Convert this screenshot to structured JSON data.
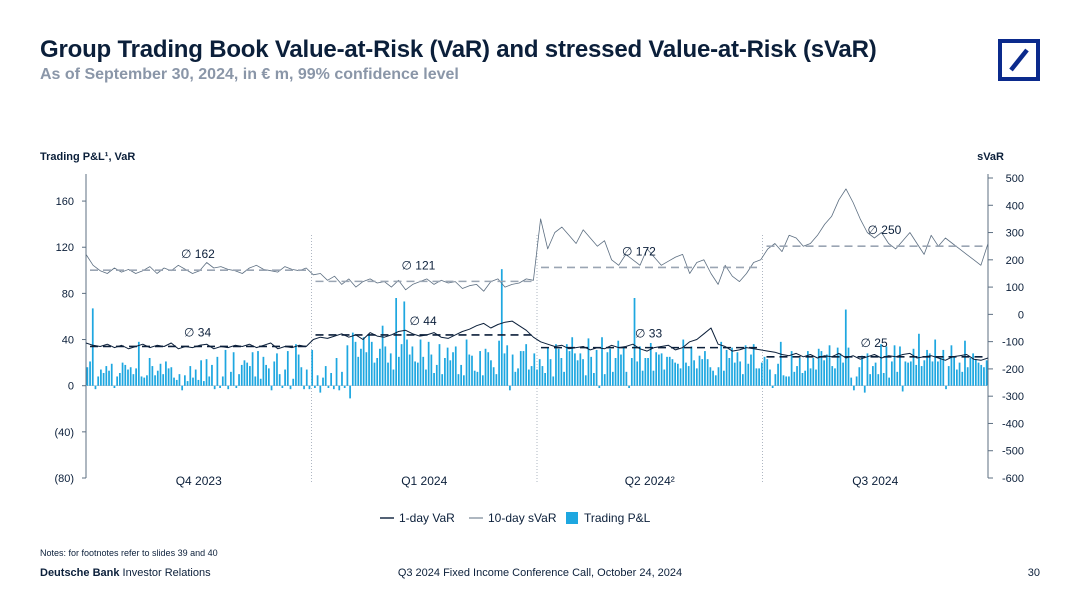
{
  "header": {
    "title": "Group Trading Book Value-at-Risk (VaR) and stressed Value-at-Risk (sVaR)",
    "subtitle": "As of September 30, 2024, in € m, 99% confidence level"
  },
  "brand": {
    "logo": "deutsche-bank-logo",
    "color": "#0b2a8c"
  },
  "chart_data": {
    "type": "line",
    "left_axis": {
      "label": "Trading P&L¹, VaR",
      "ylim": [
        -80,
        180
      ],
      "ticks": [
        -80,
        -40,
        0,
        40,
        80,
        120,
        160
      ],
      "tick_labels": [
        "(80)",
        "(40)",
        "0",
        "40",
        "80",
        "120",
        "160"
      ]
    },
    "right_axis": {
      "label": "sVaR",
      "ylim": [
        -600,
        500
      ],
      "ticks": [
        -600,
        -500,
        -400,
        -300,
        -200,
        -100,
        0,
        100,
        200,
        300,
        400,
        500
      ],
      "tick_labels": [
        "-600",
        "-500",
        "-400",
        "-300",
        "-200",
        "-100",
        "0",
        "100",
        "200",
        "300",
        "400",
        "500"
      ]
    },
    "quarters": [
      {
        "label": "Q4 2023",
        "avg_var": 34,
        "avg_svar": 162,
        "avg_var_label": "∅ 34",
        "avg_svar_label": "∅ 162"
      },
      {
        "label": "Q1 2024",
        "avg_var": 44,
        "avg_svar": 121,
        "avg_var_label": "∅ 44",
        "avg_svar_label": "∅ 121"
      },
      {
        "label": "Q2 2024²",
        "avg_var": 33,
        "avg_svar": 172,
        "avg_var_label": "∅ 33",
        "avg_svar_label": "∅ 172"
      },
      {
        "label": "Q3 2024",
        "avg_var": 25,
        "avg_svar": 250,
        "avg_var_label": "∅ 25",
        "avg_svar_label": "∅ 250"
      }
    ],
    "series": [
      {
        "name": "1-day VaR",
        "axis": "left",
        "color": "#0b1f3a",
        "points_per_quarter": 32,
        "values": [
          37,
          35,
          34,
          36,
          33,
          35,
          32,
          34,
          36,
          33,
          35,
          34,
          37,
          32,
          34,
          33,
          35,
          36,
          32,
          34,
          33,
          35,
          34,
          36,
          33,
          35,
          37,
          32,
          34,
          33,
          35,
          34,
          40,
          42,
          41,
          43,
          45,
          42,
          44,
          40,
          46,
          43,
          42,
          44,
          47,
          48,
          45,
          43,
          44,
          46,
          42,
          41,
          44,
          47,
          49,
          52,
          54,
          50,
          53,
          55,
          56,
          52,
          48,
          42,
          38,
          36,
          34,
          35,
          32,
          33,
          34,
          31,
          33,
          32,
          35,
          33,
          34,
          36,
          32,
          30,
          33,
          34,
          35,
          31,
          33,
          38,
          40,
          45,
          50,
          36,
          34,
          30,
          31,
          33,
          32,
          31,
          30,
          29,
          27,
          26,
          28,
          25,
          27,
          24,
          26,
          25,
          28,
          24,
          26,
          23,
          25,
          27,
          24,
          26,
          25,
          27,
          28,
          24,
          25,
          26,
          24,
          22,
          25,
          26,
          27,
          23,
          22,
          24
        ]
      },
      {
        "name": "10-day sVaR",
        "axis": "right",
        "color": "#5d6f82",
        "points_per_quarter": 32,
        "values": [
          220,
          180,
          160,
          150,
          170,
          155,
          165,
          150,
          160,
          175,
          150,
          170,
          160,
          180,
          165,
          150,
          160,
          190,
          170,
          175,
          165,
          160,
          150,
          170,
          180,
          165,
          160,
          155,
          175,
          165,
          160,
          170,
          145,
          150,
          125,
          140,
          110,
          130,
          100,
          120,
          130,
          115,
          120,
          100,
          125,
          90,
          110,
          120,
          130,
          110,
          125,
          115,
          120,
          95,
          105,
          110,
          85,
          120,
          130,
          100,
          110,
          115,
          130,
          125,
          350,
          240,
          300,
          320,
          290,
          260,
          310,
          280,
          250,
          270,
          200,
          180,
          220,
          200,
          180,
          240,
          210,
          180,
          195,
          210,
          220,
          150,
          190,
          200,
          150,
          110,
          180,
          140,
          120,
          150,
          190,
          200,
          240,
          260,
          230,
          290,
          280,
          250,
          260,
          290,
          330,
          360,
          420,
          460,
          410,
          350,
          300,
          280,
          300,
          260,
          240,
          270,
          300,
          260,
          220,
          290,
          250,
          280,
          260,
          240,
          220,
          200,
          180,
          260
        ]
      },
      {
        "name": "Trading P&L",
        "axis": "left",
        "color": "#1ea7e0",
        "type": "bar",
        "points_per_quarter": 48,
        "values": [
          16,
          21,
          67,
          -3,
          8,
          14,
          11,
          17,
          13,
          19,
          -2,
          8,
          11,
          20,
          18,
          14,
          16,
          10,
          15,
          38,
          8,
          7,
          9,
          24,
          17,
          9,
          13,
          19,
          10,
          21,
          15,
          16,
          7,
          5,
          10,
          -4,
          9,
          4,
          17,
          7,
          14,
          5,
          22,
          4,
          23,
          8,
          18,
          -3,
          25,
          -2,
          8,
          31,
          -3,
          12,
          29,
          -2,
          10,
          18,
          22,
          20,
          17,
          29,
          8,
          30,
          6,
          25,
          18,
          15,
          -4,
          21,
          28,
          10,
          -2,
          14,
          30,
          -3,
          6,
          36,
          27,
          16,
          -3,
          14,
          -3,
          31,
          -2,
          9,
          -6,
          7,
          17,
          -2,
          11,
          -3,
          24,
          -4,
          12,
          -2,
          35,
          -11,
          46,
          38,
          25,
          32,
          42,
          29,
          45,
          38,
          20,
          24,
          32,
          52,
          34,
          20,
          28,
          14,
          76,
          25,
          36,
          73,
          40,
          27,
          34,
          21,
          20,
          40,
          25,
          14,
          38,
          27,
          11,
          18,
          36,
          10,
          24,
          33,
          22,
          29,
          34,
          10,
          18,
          9,
          40,
          27,
          26,
          13,
          12,
          30,
          9,
          32,
          29,
          22,
          16,
          10,
          39,
          101,
          28,
          35,
          -4,
          27,
          12,
          15,
          30,
          30,
          36,
          14,
          17,
          28,
          14,
          23,
          17,
          11,
          33,
          23,
          8,
          36,
          32,
          24,
          12,
          36,
          30,
          42,
          28,
          22,
          28,
          23,
          9,
          41,
          25,
          11,
          31,
          -2,
          42,
          10,
          29,
          32,
          12,
          24,
          39,
          27,
          33,
          12,
          -2,
          24,
          76,
          21,
          34,
          13,
          24,
          24,
          37,
          13,
          29,
          27,
          28,
          14,
          25,
          25,
          23,
          20,
          19,
          15,
          40,
          20,
          17,
          34,
          22,
          15,
          26,
          23,
          30,
          23,
          16,
          13,
          9,
          16,
          38,
          13,
          31,
          24,
          33,
          20,
          29,
          21,
          10,
          35,
          19,
          27,
          36,
          15,
          15,
          20,
          25,
          23,
          14,
          -2,
          10,
          19,
          38,
          9,
          8,
          8,
          30,
          12,
          17,
          24,
          11,
          13,
          30,
          15,
          24,
          14,
          32,
          30,
          22,
          27,
          35,
          17,
          15,
          33,
          28,
          20,
          66,
          33,
          7,
          -4,
          8,
          16,
          26,
          -6,
          28,
          10,
          17,
          20,
          10,
          36,
          11,
          34,
          7,
          21,
          35,
          12,
          34,
          -5,
          21,
          20,
          21,
          32,
          18,
          45,
          17,
          22,
          31,
          28,
          21,
          40,
          21,
          24,
          31,
          -3,
          17,
          35,
          25,
          14,
          20,
          12,
          39,
          16,
          24,
          28,
          23,
          20,
          18,
          16,
          22
        ]
      }
    ],
    "legend": [
      "1-day VaR",
      "10-day sVaR",
      "Trading P&L"
    ],
    "legend_position": "bottom-center"
  },
  "footer": {
    "notes": "Notes: for footnotes refer to slides 39 and 40",
    "brand_bold": "Deutsche Bank",
    "brand_rest": " Investor Relations",
    "event": "Q3 2024 Fixed Income Conference Call, October 24, 2024",
    "page": "30"
  }
}
